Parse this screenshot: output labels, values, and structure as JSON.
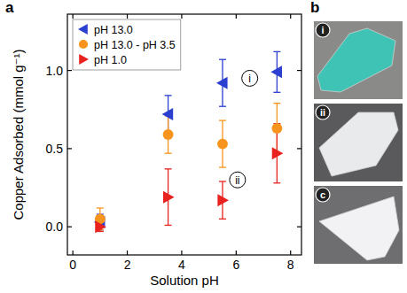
{
  "chart_data": {
    "type": "scatter",
    "x_label": "Solution pH",
    "y_label": "Copper Adsorbed (mmol g⁻¹)",
    "x": [
      1.0,
      3.5,
      5.5,
      7.5
    ],
    "xlim": [
      -0.2,
      8.4
    ],
    "xticks": [
      0,
      2,
      4,
      6,
      8
    ],
    "ylim": [
      -0.18,
      1.36
    ],
    "yticks": [
      {
        "value": 0,
        "label": "0.0"
      },
      {
        "value": 0.5,
        "label": "0.5"
      },
      {
        "value": 1.0,
        "label": "1.0"
      }
    ],
    "grid": false,
    "legend": "upper-left",
    "series": [
      {
        "name": "pH 13.0",
        "color": "#2b3fd1",
        "marker": "triangle-left",
        "values": [
          0.03,
          0.72,
          0.92,
          0.99
        ],
        "errors": [
          0.05,
          0.12,
          0.15,
          0.13
        ]
      },
      {
        "name": "pH 13.0 - pH 3.5",
        "color": "#f7941d",
        "marker": "circle",
        "values": [
          0.05,
          0.59,
          0.53,
          0.63
        ],
        "errors": [
          0.07,
          0.12,
          0.15,
          0.16
        ]
      },
      {
        "name": "pH 1.0",
        "color": "#e8231f",
        "marker": "triangle-right",
        "values": [
          0.0,
          0.19,
          0.17,
          0.47
        ],
        "errors": [
          0.03,
          0.18,
          0.12,
          0.19
        ]
      }
    ],
    "annotations": [
      {
        "text": "i",
        "x": 6.5,
        "y": 0.95
      },
      {
        "text": "ii",
        "x": 6.05,
        "y": 0.3
      }
    ]
  },
  "panels": {
    "labels": [
      "a",
      "b"
    ],
    "photos": [
      "i",
      "ii",
      "c"
    ]
  }
}
